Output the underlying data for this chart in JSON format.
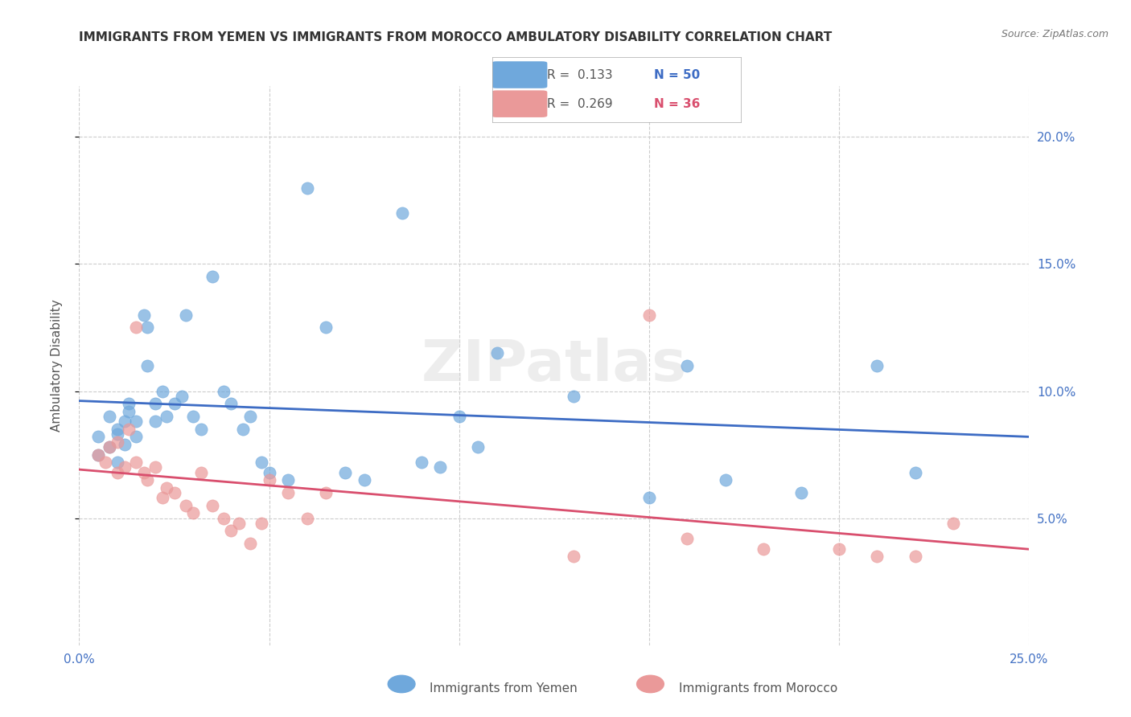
{
  "title": "IMMIGRANTS FROM YEMEN VS IMMIGRANTS FROM MOROCCO AMBULATORY DISABILITY CORRELATION CHART",
  "source": "Source: ZipAtlas.com",
  "xlabel_bottom": "",
  "ylabel": "Ambulatory Disability",
  "xlim": [
    0.0,
    0.25
  ],
  "ylim": [
    0.0,
    0.22
  ],
  "xticks": [
    0.0,
    0.05,
    0.1,
    0.15,
    0.2,
    0.25
  ],
  "yticks": [
    0.05,
    0.1,
    0.15,
    0.2
  ],
  "xticklabels": [
    "0.0%",
    "",
    "",
    "",
    "",
    "25.0%"
  ],
  "yticklabels_right": [
    "5.0%",
    "10.0%",
    "15.0%",
    "20.0%"
  ],
  "legend_r_yemen": "0.133",
  "legend_n_yemen": "50",
  "legend_r_morocco": "0.269",
  "legend_n_morocco": "36",
  "yemen_color": "#6fa8dc",
  "morocco_color": "#ea9999",
  "yemen_line_color": "#3d6cc4",
  "morocco_line_color": "#d94f6e",
  "background_color": "#ffffff",
  "watermark": "ZIPatlas",
  "yemen_x": [
    0.005,
    0.005,
    0.008,
    0.008,
    0.01,
    0.01,
    0.01,
    0.012,
    0.012,
    0.013,
    0.013,
    0.015,
    0.015,
    0.017,
    0.018,
    0.018,
    0.02,
    0.02,
    0.022,
    0.023,
    0.025,
    0.027,
    0.028,
    0.03,
    0.032,
    0.035,
    0.038,
    0.04,
    0.043,
    0.045,
    0.048,
    0.05,
    0.055,
    0.06,
    0.065,
    0.07,
    0.075,
    0.085,
    0.09,
    0.095,
    0.1,
    0.105,
    0.11,
    0.13,
    0.15,
    0.16,
    0.17,
    0.19,
    0.21,
    0.22
  ],
  "yemen_y": [
    0.082,
    0.075,
    0.09,
    0.078,
    0.085,
    0.083,
    0.072,
    0.088,
    0.079,
    0.095,
    0.092,
    0.088,
    0.082,
    0.13,
    0.125,
    0.11,
    0.095,
    0.088,
    0.1,
    0.09,
    0.095,
    0.098,
    0.13,
    0.09,
    0.085,
    0.145,
    0.1,
    0.095,
    0.085,
    0.09,
    0.072,
    0.068,
    0.065,
    0.18,
    0.125,
    0.068,
    0.065,
    0.17,
    0.072,
    0.07,
    0.09,
    0.078,
    0.115,
    0.098,
    0.058,
    0.11,
    0.065,
    0.06,
    0.11,
    0.068
  ],
  "morocco_x": [
    0.005,
    0.007,
    0.008,
    0.01,
    0.01,
    0.012,
    0.013,
    0.015,
    0.015,
    0.017,
    0.018,
    0.02,
    0.022,
    0.023,
    0.025,
    0.028,
    0.03,
    0.032,
    0.035,
    0.038,
    0.04,
    0.042,
    0.045,
    0.048,
    0.05,
    0.055,
    0.06,
    0.065,
    0.13,
    0.15,
    0.16,
    0.18,
    0.2,
    0.21,
    0.22,
    0.23
  ],
  "morocco_y": [
    0.075,
    0.072,
    0.078,
    0.068,
    0.08,
    0.07,
    0.085,
    0.125,
    0.072,
    0.068,
    0.065,
    0.07,
    0.058,
    0.062,
    0.06,
    0.055,
    0.052,
    0.068,
    0.055,
    0.05,
    0.045,
    0.048,
    0.04,
    0.048,
    0.065,
    0.06,
    0.05,
    0.06,
    0.035,
    0.13,
    0.042,
    0.038,
    0.038,
    0.035,
    0.035,
    0.048
  ]
}
